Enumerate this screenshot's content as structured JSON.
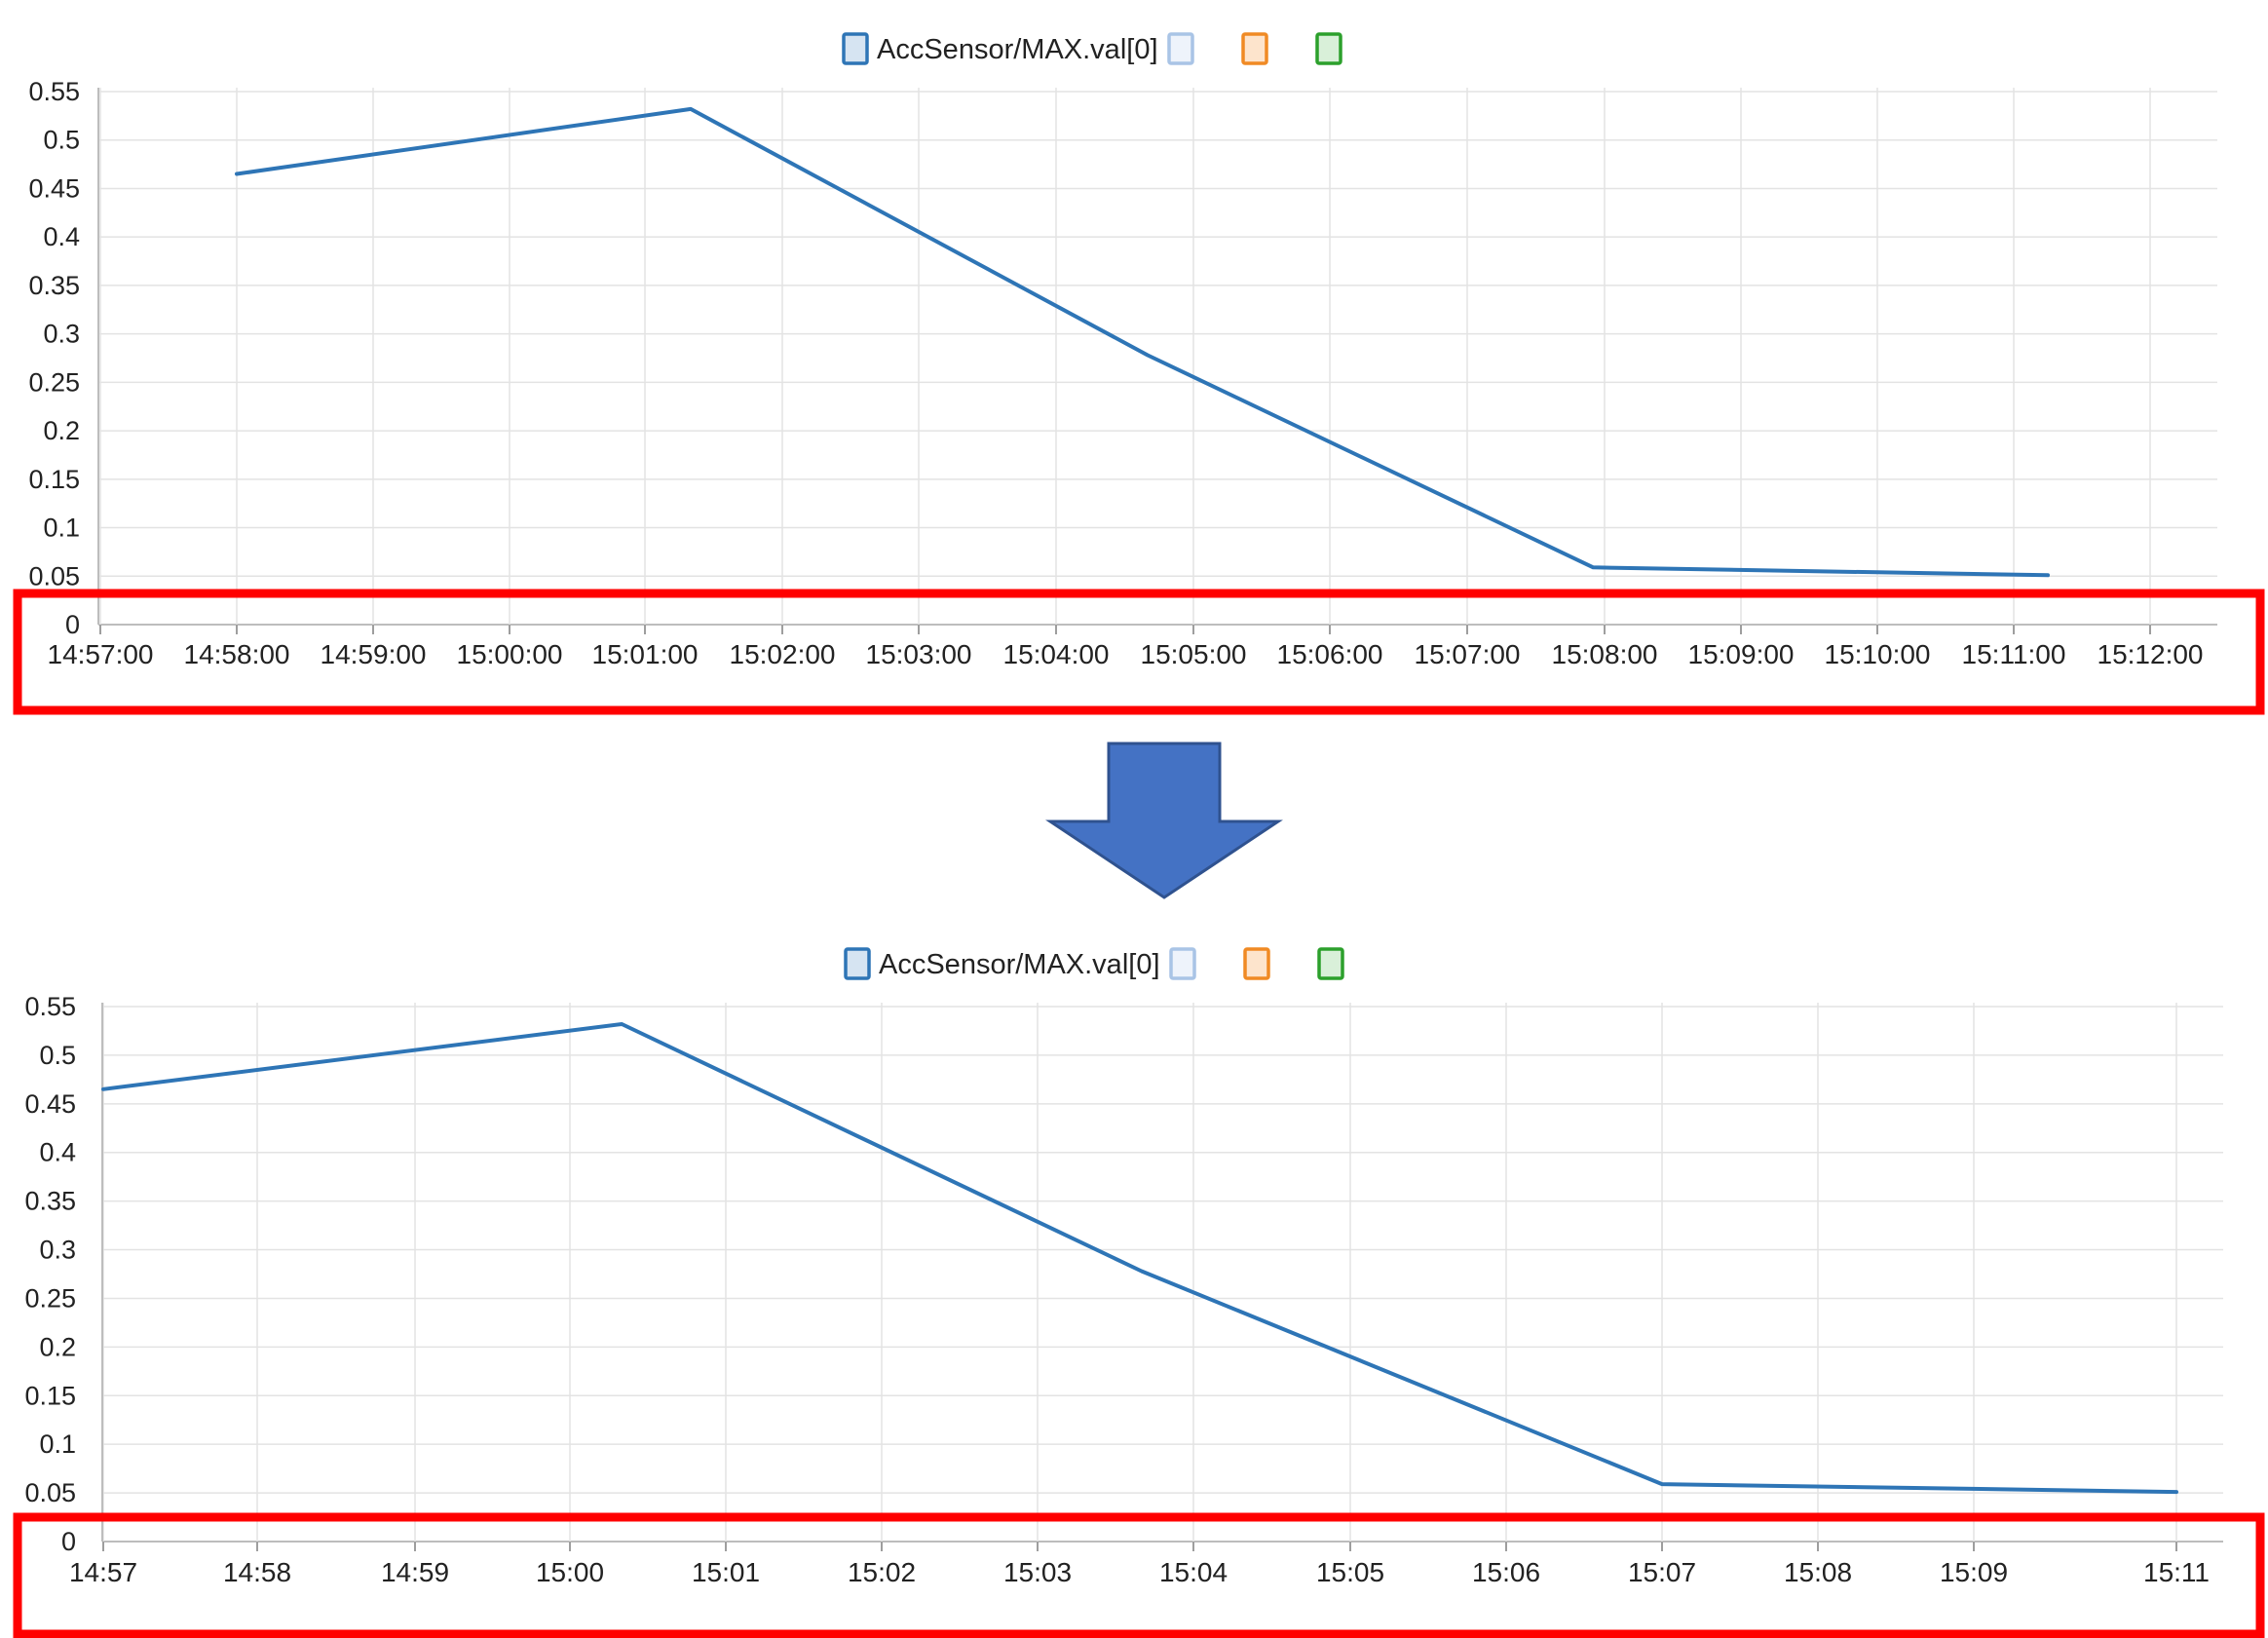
{
  "charts": [
    {
      "chart_data": {
        "type": "line",
        "legend": {
          "placement": "top-center",
          "entries": [
            {
              "label": "AccSensor/MAX.val[0]",
              "color": "#2e75b6"
            },
            {
              "label": "",
              "color": "#a9c4e6"
            },
            {
              "label": "",
              "color": "#f08a24"
            },
            {
              "label": "",
              "color": "#2ca02c"
            }
          ]
        },
        "ylim": [
          0,
          0.55
        ],
        "y_ticks": [
          "0",
          "0.05",
          "0.1",
          "0.15",
          "0.2",
          "0.25",
          "0.3",
          "0.35",
          "0.4",
          "0.45",
          "0.5",
          "0.55"
        ],
        "xlim": [
          "14:57:00",
          "15:12:00"
        ],
        "x_tick_labels": [
          "14:57:00",
          "14:58:00",
          "14:59:00",
          "15:00:00",
          "15:01:00",
          "15:02:00",
          "15:03:00",
          "15:04:00",
          "15:05:00",
          "15:06:00",
          "15:07:00",
          "15:08:00",
          "15:09:00",
          "15:10:00",
          "15:11:00",
          "15:12:00"
        ],
        "grid": true,
        "series": [
          {
            "name": "AccSensor/MAX.val[0]",
            "color": "#2e75b6",
            "x": [
              "14:58:00",
              "15:01:20",
              "15:04:40",
              "15:07:55",
              "15:11:15"
            ],
            "values": [
              0.465,
              0.532,
              0.278,
              0.059,
              0.051
            ]
          }
        ]
      },
      "highlight": {
        "color": "#ff0000",
        "target": "x-axis"
      }
    },
    {
      "chart_data": {
        "type": "line",
        "legend": {
          "placement": "top-center",
          "entries": [
            {
              "label": "AccSensor/MAX.val[0]",
              "color": "#2e75b6"
            },
            {
              "label": "",
              "color": "#a9c4e6"
            },
            {
              "label": "",
              "color": "#f08a24"
            },
            {
              "label": "",
              "color": "#2ca02c"
            }
          ]
        },
        "ylim": [
          0,
          0.55
        ],
        "y_ticks": [
          "0",
          "0.05",
          "0.1",
          "0.15",
          "0.2",
          "0.25",
          "0.3",
          "0.35",
          "0.4",
          "0.45",
          "0.5",
          "0.55"
        ],
        "xlim": [
          "14:57",
          "15:11"
        ],
        "x_tick_labels": [
          "14:57",
          "14:58",
          "14:59",
          "15:00",
          "15:01",
          "15:02",
          "15:03",
          "15:04",
          "15:05",
          "15:06",
          "15:07",
          "15:08",
          "15:09",
          "15:11"
        ],
        "grid": true,
        "series": [
          {
            "name": "AccSensor/MAX.val[0]",
            "color": "#2e75b6",
            "x": [
              "14:57:00",
              "15:00:20",
              "15:03:40",
              "15:07:00",
              "15:11:00"
            ],
            "values": [
              0.465,
              0.532,
              0.278,
              0.059,
              0.051
            ]
          }
        ]
      },
      "highlight": {
        "color": "#ff0000",
        "target": "x-axis"
      }
    }
  ],
  "transition_arrow": {
    "color": "#4472c4",
    "border": "#2f528f",
    "direction": "down"
  }
}
